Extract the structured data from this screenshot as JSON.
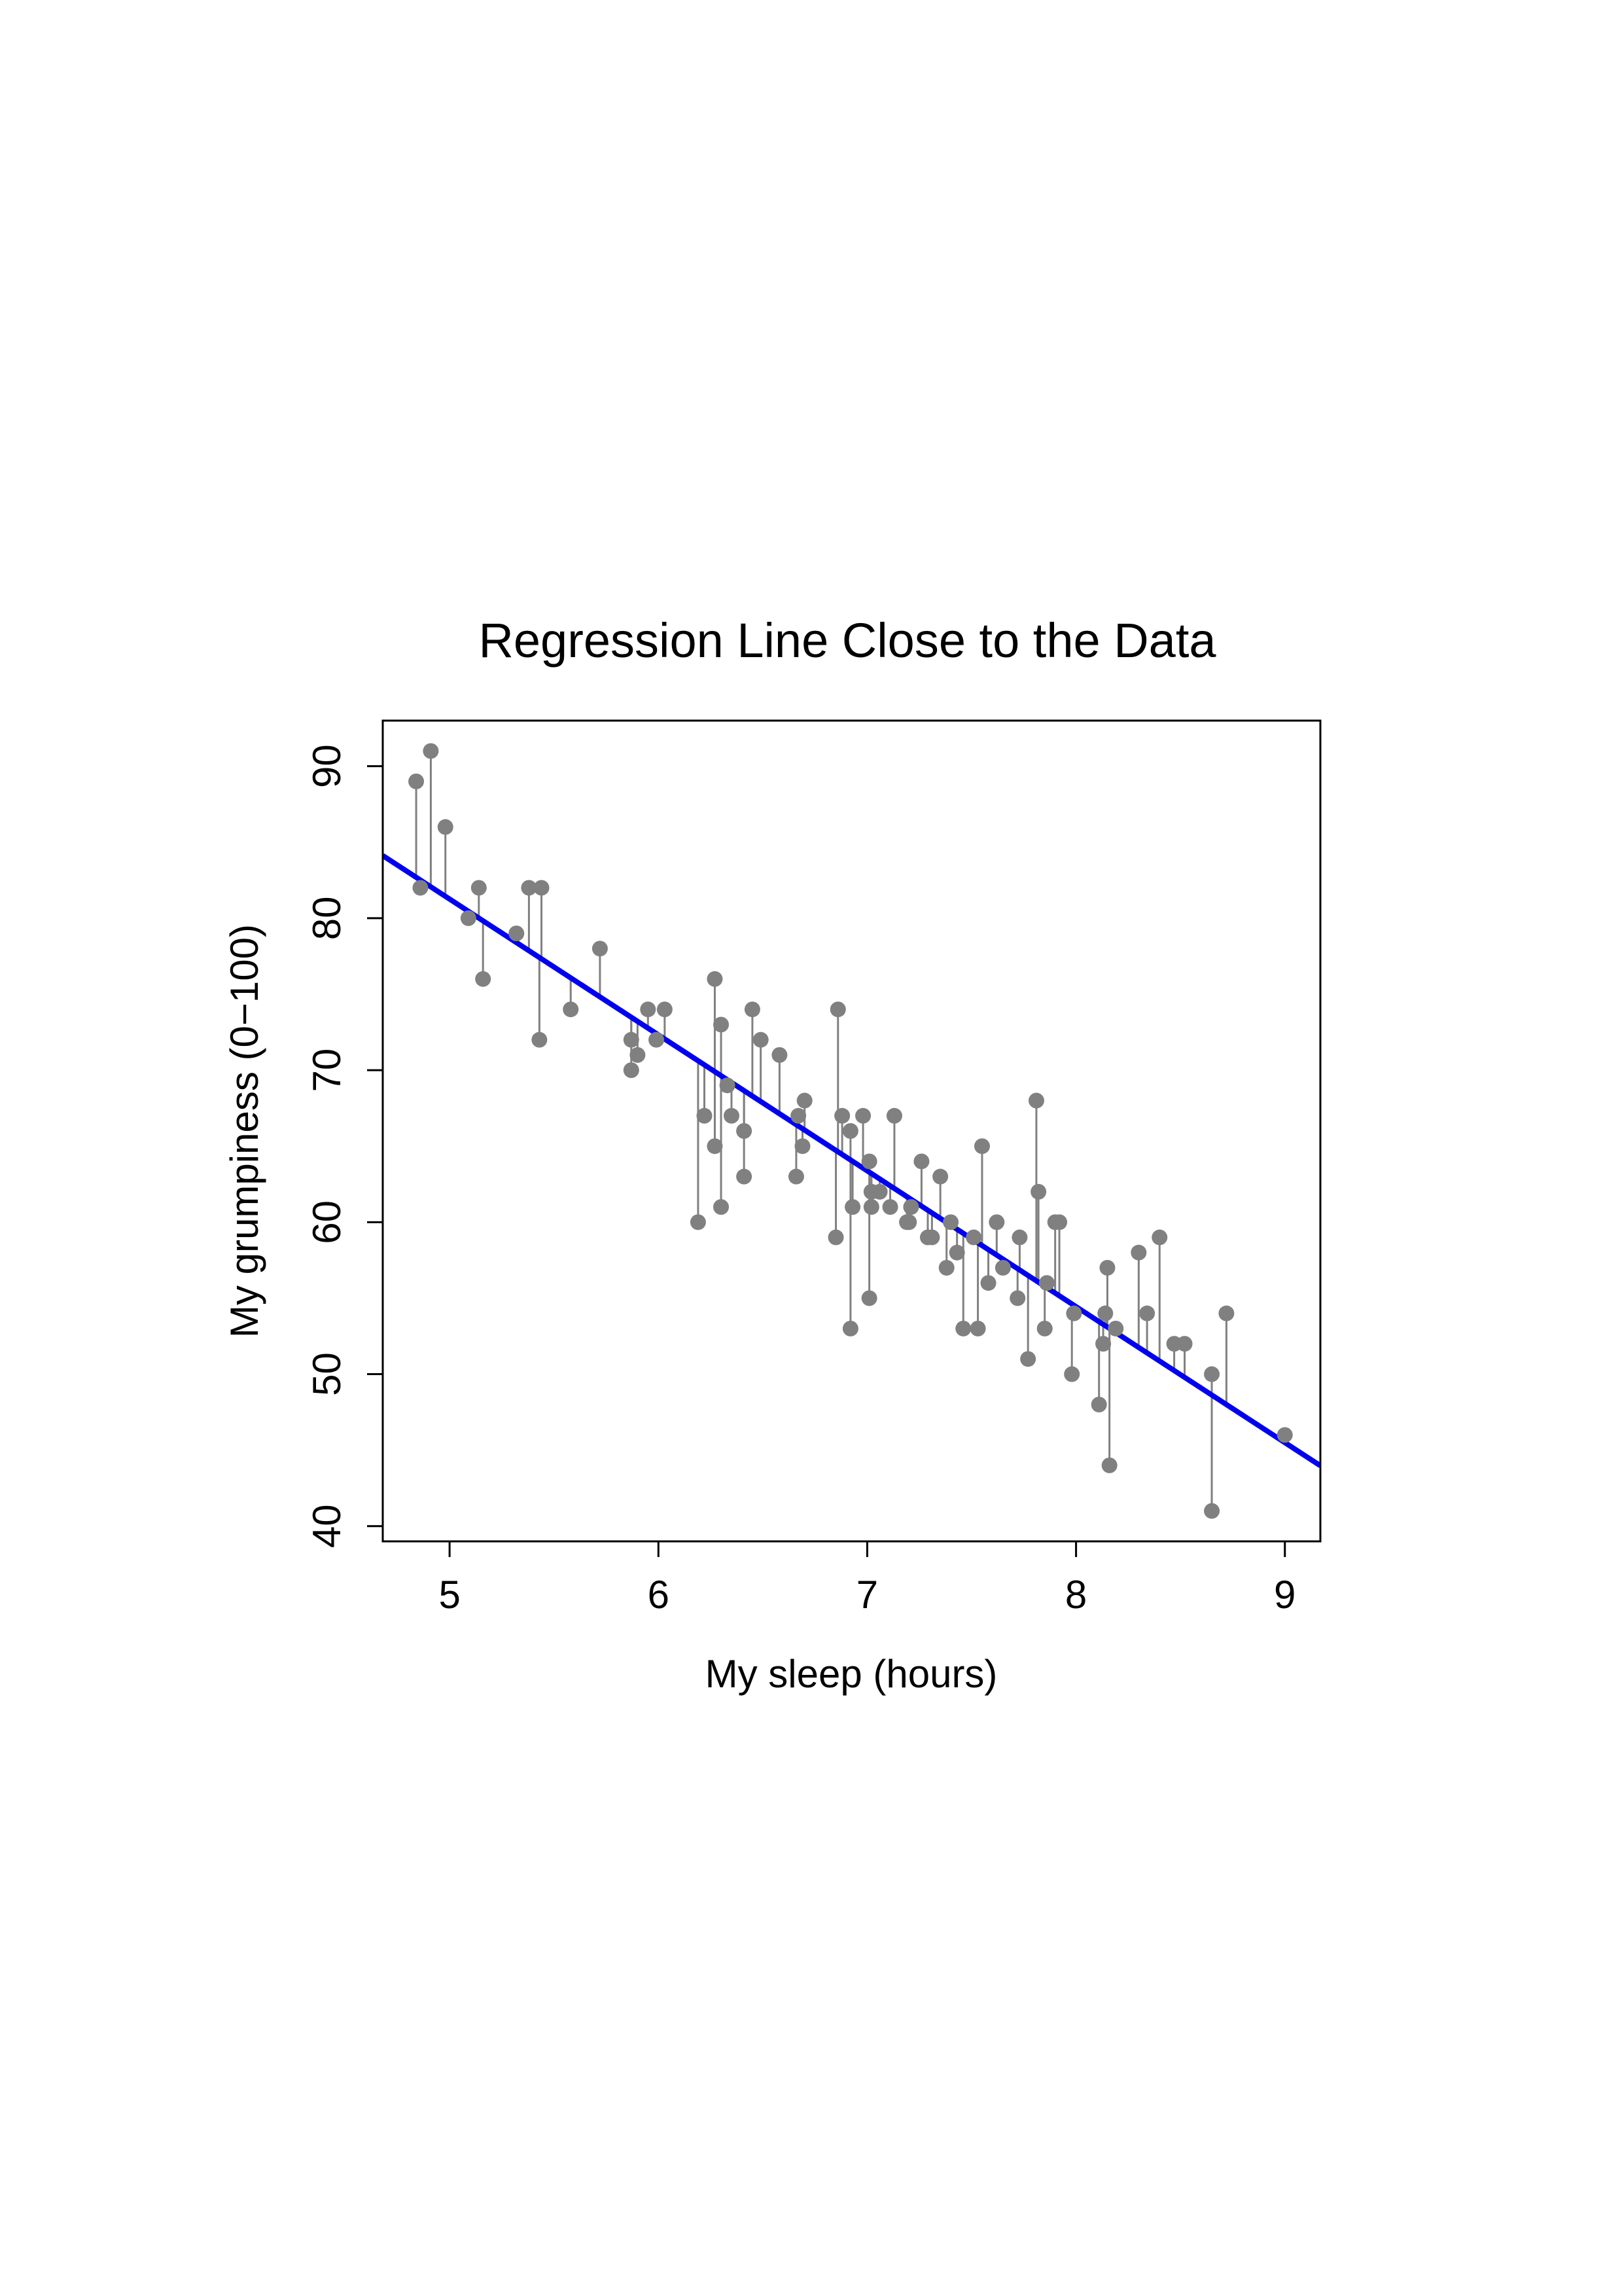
{
  "chart_data": {
    "type": "scatter",
    "title": "Regression Line Close to the Data",
    "xlabel": "My sleep (hours)",
    "ylabel": "My grumpiness (0−100)",
    "xlim": [
      4.68,
      9.17
    ],
    "ylim": [
      39.0,
      93.0
    ],
    "xticks": [
      5,
      6,
      7,
      8,
      9
    ],
    "yticks": [
      40,
      50,
      60,
      70,
      80,
      90
    ],
    "grid": false,
    "colors": {
      "points": "#808080",
      "residuals": "#808080",
      "regression_line": "#0000EE",
      "frame": "#000000"
    },
    "regression_line": {
      "intercept": 125.96,
      "slope": -8.94
    },
    "points": [
      [
        4.84,
        89
      ],
      [
        4.86,
        82
      ],
      [
        4.91,
        91
      ],
      [
        4.98,
        86
      ],
      [
        5.09,
        80
      ],
      [
        5.14,
        82
      ],
      [
        5.16,
        76
      ],
      [
        5.32,
        79
      ],
      [
        5.38,
        82
      ],
      [
        5.43,
        72
      ],
      [
        5.44,
        82
      ],
      [
        5.58,
        74
      ],
      [
        5.72,
        78
      ],
      [
        5.87,
        70
      ],
      [
        5.87,
        72
      ],
      [
        5.9,
        71
      ],
      [
        5.95,
        74
      ],
      [
        5.99,
        72
      ],
      [
        6.03,
        74
      ],
      [
        6.19,
        60
      ],
      [
        6.22,
        67
      ],
      [
        6.27,
        76
      ],
      [
        6.27,
        65
      ],
      [
        6.3,
        61
      ],
      [
        6.3,
        73
      ],
      [
        6.33,
        69
      ],
      [
        6.35,
        67
      ],
      [
        6.41,
        63
      ],
      [
        6.41,
        66
      ],
      [
        6.45,
        74
      ],
      [
        6.49,
        72
      ],
      [
        6.58,
        71
      ],
      [
        6.66,
        63
      ],
      [
        6.67,
        67
      ],
      [
        6.69,
        65
      ],
      [
        6.7,
        68
      ],
      [
        6.86,
        74
      ],
      [
        6.85,
        59
      ],
      [
        6.88,
        67
      ],
      [
        6.92,
        66
      ],
      [
        6.93,
        61
      ],
      [
        6.92,
        53
      ],
      [
        6.98,
        67
      ],
      [
        7.01,
        64
      ],
      [
        7.01,
        55
      ],
      [
        7.02,
        62
      ],
      [
        7.02,
        61
      ],
      [
        7.06,
        62
      ],
      [
        7.11,
        61
      ],
      [
        7.13,
        67
      ],
      [
        7.19,
        60
      ],
      [
        7.21,
        61
      ],
      [
        7.2,
        60
      ],
      [
        7.26,
        64
      ],
      [
        7.29,
        59
      ],
      [
        7.31,
        59
      ],
      [
        7.35,
        63
      ],
      [
        7.38,
        57
      ],
      [
        7.4,
        60
      ],
      [
        7.43,
        58
      ],
      [
        7.46,
        53
      ],
      [
        7.51,
        59
      ],
      [
        7.53,
        53
      ],
      [
        7.55,
        65
      ],
      [
        7.58,
        56
      ],
      [
        7.62,
        60
      ],
      [
        7.65,
        57
      ],
      [
        7.72,
        55
      ],
      [
        7.73,
        59
      ],
      [
        7.77,
        51
      ],
      [
        7.81,
        68
      ],
      [
        7.82,
        62
      ],
      [
        7.85,
        53
      ],
      [
        7.86,
        56
      ],
      [
        7.9,
        60
      ],
      [
        7.92,
        60
      ],
      [
        7.98,
        50
      ],
      [
        7.99,
        54
      ],
      [
        8.11,
        48
      ],
      [
        8.13,
        52
      ],
      [
        8.14,
        54
      ],
      [
        8.15,
        57
      ],
      [
        8.16,
        44
      ],
      [
        8.19,
        53
      ],
      [
        8.3,
        58
      ],
      [
        8.34,
        54
      ],
      [
        8.4,
        59
      ],
      [
        8.47,
        52
      ],
      [
        8.52,
        52
      ],
      [
        8.65,
        41
      ],
      [
        8.65,
        50
      ],
      [
        8.72,
        54
      ],
      [
        9.0,
        46
      ]
    ]
  }
}
